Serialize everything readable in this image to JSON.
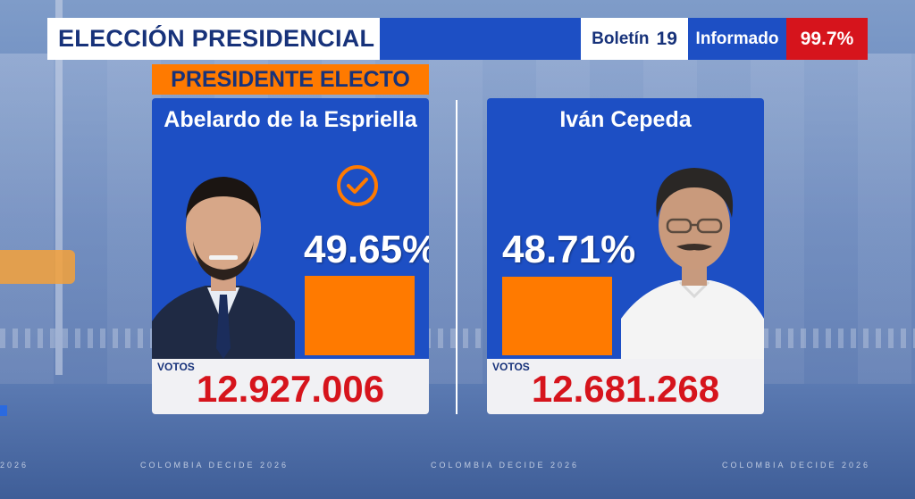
{
  "header": {
    "title": "ELECCIÓN PRESIDENCIAL",
    "bulletin_label": "Boletín",
    "bulletin_number": "19",
    "informed_label": "Informado",
    "informed_pct": "99.7%"
  },
  "elect_tag": "PRESIDENTE ELECTO",
  "candidates": [
    {
      "name": "Abelardo de la Espriella",
      "percent": "49.65%",
      "percent_value": 49.65,
      "votes_label": "VOTOS",
      "votes": "12.927.006",
      "winner": true
    },
    {
      "name": "Iván Cepeda",
      "percent": "48.71%",
      "percent_value": 48.71,
      "votes_label": "VOTOS",
      "votes": "12.681.268",
      "winner": false
    }
  ],
  "footer_text": "COLOMBIA DECIDE 2026",
  "footer_partial": "2026",
  "colors": {
    "brand_blue": "#1d4fc4",
    "accent_orange": "#ff7a00",
    "alert_red": "#d6141c"
  },
  "icons": {
    "winner_icon": "check-circle-icon"
  }
}
